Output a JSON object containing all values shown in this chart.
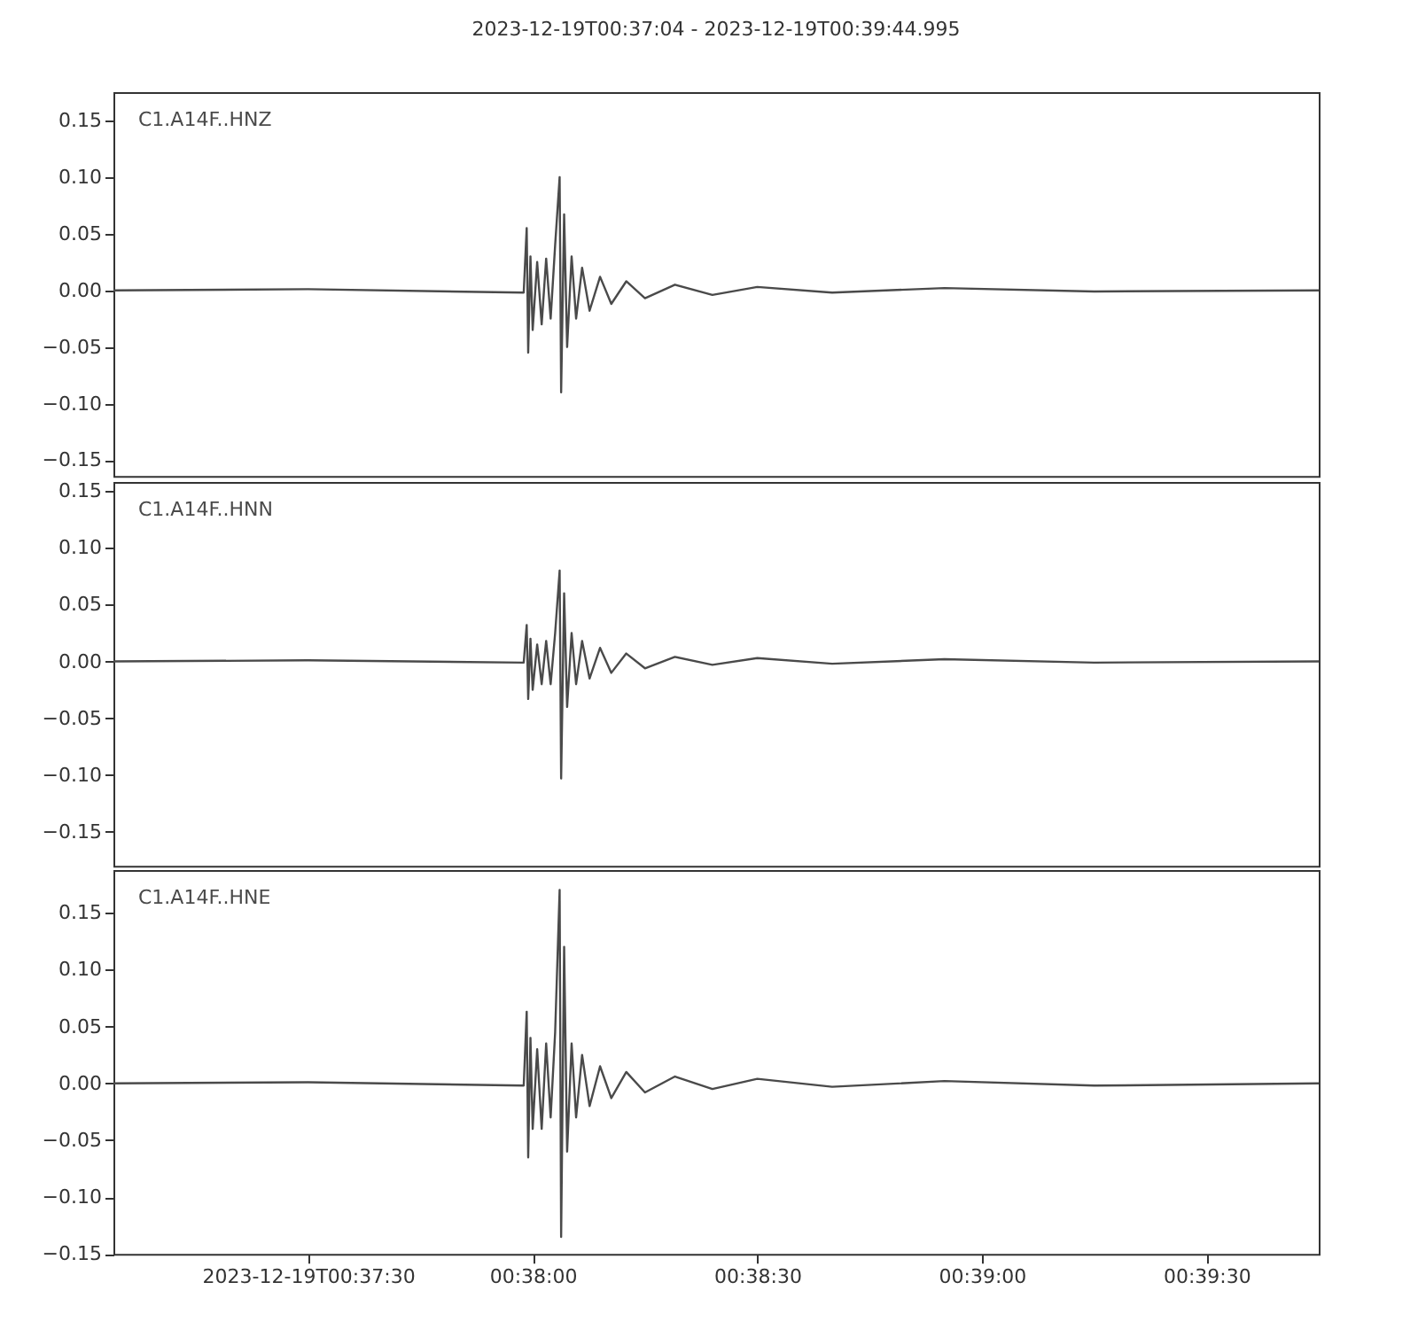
{
  "chart_data": [
    {
      "type": "line",
      "title": "2023-12-19T00:37:04  -  2023-12-19T00:39:44.995",
      "tick_labels": "y",
      "x": [
        "2023-12-19T00:37:04",
        "2023-12-19T00:37:30",
        "2023-12-19T00:37:58.8",
        "2023-12-19T00:37:59.2",
        "2023-12-19T00:37:59.4",
        "2023-12-19T00:37:59.7",
        "2023-12-19T00:38:00",
        "2023-12-19T00:38:00.6",
        "2023-12-19T00:38:01.2",
        "2023-12-19T00:38:01.8",
        "2023-12-19T00:38:02.4",
        "2023-12-19T00:38:03",
        "2023-12-19T00:38:03.6",
        "2023-12-19T00:38:03.8",
        "2023-12-19T00:38:04.2",
        "2023-12-19T00:38:04.6",
        "2023-12-19T00:38:05.2",
        "2023-12-19T00:38:05.8",
        "2023-12-19T00:38:06.6",
        "2023-12-19T00:38:07.6",
        "2023-12-19T00:38:09",
        "2023-12-19T00:38:10.5",
        "2023-12-19T00:38:12.5",
        "2023-12-19T00:38:15",
        "2023-12-19T00:38:19",
        "2023-12-19T00:38:24",
        "2023-12-19T00:38:30",
        "2023-12-19T00:38:40",
        "2023-12-19T00:38:55",
        "2023-12-19T00:39:15",
        "2023-12-19T00:39:44.995"
      ],
      "xlim": [
        "2023-12-19T00:37:04",
        "2023-12-19T00:39:44.995"
      ],
      "ylim": [
        -0.164,
        0.175
      ],
      "yticks": [
        {
          "value": -0.15,
          "label": "−0.15"
        },
        {
          "value": -0.1,
          "label": "−0.10"
        },
        {
          "value": -0.05,
          "label": "−0.05"
        },
        {
          "value": 0,
          "label": "0.00"
        },
        {
          "value": 0.05,
          "label": "0.05"
        },
        {
          "value": 0.1,
          "label": "0.10"
        },
        {
          "value": 0.15,
          "label": "0.15"
        }
      ],
      "series": [
        {
          "name": "C1.A14F..HNZ",
          "color": "#4a4a4a",
          "values": [
            0,
            0.001,
            -0.002,
            0.055,
            -0.055,
            0.03,
            -0.035,
            0.025,
            -0.03,
            0.028,
            -0.025,
            0.04,
            0.1,
            -0.09,
            0.067,
            -0.05,
            0.03,
            -0.025,
            0.02,
            -0.018,
            0.012,
            -0.012,
            0.008,
            -0.007,
            0.005,
            -0.004,
            0.003,
            -0.002,
            0.002,
            -0.001,
            0
          ]
        }
      ]
    },
    {
      "type": "line",
      "tick_labels": "y",
      "x": [
        "2023-12-19T00:37:04",
        "2023-12-19T00:37:30",
        "2023-12-19T00:37:58.8",
        "2023-12-19T00:37:59.2",
        "2023-12-19T00:37:59.4",
        "2023-12-19T00:37:59.7",
        "2023-12-19T00:38:00",
        "2023-12-19T00:38:00.6",
        "2023-12-19T00:38:01.2",
        "2023-12-19T00:38:01.8",
        "2023-12-19T00:38:02.4",
        "2023-12-19T00:38:03",
        "2023-12-19T00:38:03.6",
        "2023-12-19T00:38:03.8",
        "2023-12-19T00:38:04.2",
        "2023-12-19T00:38:04.6",
        "2023-12-19T00:38:05.2",
        "2023-12-19T00:38:05.8",
        "2023-12-19T00:38:06.6",
        "2023-12-19T00:38:07.6",
        "2023-12-19T00:38:09",
        "2023-12-19T00:38:10.5",
        "2023-12-19T00:38:12.5",
        "2023-12-19T00:38:15",
        "2023-12-19T00:38:19",
        "2023-12-19T00:38:24",
        "2023-12-19T00:38:30",
        "2023-12-19T00:38:40",
        "2023-12-19T00:38:55",
        "2023-12-19T00:39:15",
        "2023-12-19T00:39:44.995"
      ],
      "xlim": [
        "2023-12-19T00:37:04",
        "2023-12-19T00:39:44.995"
      ],
      "ylim": [
        -0.18,
        0.158
      ],
      "yticks": [
        {
          "value": -0.15,
          "label": "−0.15"
        },
        {
          "value": -0.1,
          "label": "−0.10"
        },
        {
          "value": -0.05,
          "label": "−0.05"
        },
        {
          "value": 0,
          "label": "0.00"
        },
        {
          "value": 0.05,
          "label": "0.05"
        },
        {
          "value": 0.1,
          "label": "0.10"
        },
        {
          "value": 0.15,
          "label": "0.15"
        }
      ],
      "series": [
        {
          "name": "C1.A14F..HNN",
          "color": "#4a4a4a",
          "values": [
            0,
            0.001,
            -0.001,
            0.032,
            -0.033,
            0.02,
            -0.025,
            0.015,
            -0.02,
            0.018,
            -0.02,
            0.025,
            0.08,
            -0.103,
            0.06,
            -0.04,
            0.025,
            -0.02,
            0.018,
            -0.015,
            0.012,
            -0.01,
            0.007,
            -0.006,
            0.004,
            -0.003,
            0.003,
            -0.002,
            0.002,
            -0.001,
            0
          ]
        }
      ]
    },
    {
      "type": "line",
      "x": [
        "2023-12-19T00:37:04",
        "2023-12-19T00:37:30",
        "2023-12-19T00:37:58.8",
        "2023-12-19T00:37:59.2",
        "2023-12-19T00:37:59.4",
        "2023-12-19T00:37:59.7",
        "2023-12-19T00:38:00",
        "2023-12-19T00:38:00.6",
        "2023-12-19T00:38:01.2",
        "2023-12-19T00:38:01.8",
        "2023-12-19T00:38:02.4",
        "2023-12-19T00:38:03",
        "2023-12-19T00:38:03.6",
        "2023-12-19T00:38:03.8",
        "2023-12-19T00:38:04.2",
        "2023-12-19T00:38:04.6",
        "2023-12-19T00:38:05.2",
        "2023-12-19T00:38:05.8",
        "2023-12-19T00:38:06.6",
        "2023-12-19T00:38:07.6",
        "2023-12-19T00:38:09",
        "2023-12-19T00:38:10.5",
        "2023-12-19T00:38:12.5",
        "2023-12-19T00:38:15",
        "2023-12-19T00:38:19",
        "2023-12-19T00:38:24",
        "2023-12-19T00:38:30",
        "2023-12-19T00:38:40",
        "2023-12-19T00:38:55",
        "2023-12-19T00:39:15",
        "2023-12-19T00:39:44.995"
      ],
      "xlim": [
        "2023-12-19T00:37:04",
        "2023-12-19T00:39:44.995"
      ],
      "xticks": [
        {
          "value": "2023-12-19T00:37:30",
          "label": "2023-12-19T00:37:30"
        },
        {
          "value": "2023-12-19T00:38:00",
          "label": "00:38:00"
        },
        {
          "value": "2023-12-19T00:38:30",
          "label": "00:38:30"
        },
        {
          "value": "2023-12-19T00:39:00",
          "label": "00:39:00"
        },
        {
          "value": "2023-12-19T00:39:30",
          "label": "00:39:30"
        }
      ],
      "ylim": [
        -0.15,
        0.1875
      ],
      "yticks": [
        {
          "value": -0.15,
          "label": "−0.15"
        },
        {
          "value": -0.1,
          "label": "−0.10"
        },
        {
          "value": -0.05,
          "label": "−0.05"
        },
        {
          "value": 0,
          "label": "0.00"
        },
        {
          "value": 0.05,
          "label": "0.05"
        },
        {
          "value": 0.1,
          "label": "0.10"
        },
        {
          "value": 0.15,
          "label": "0.15"
        }
      ],
      "series": [
        {
          "name": "C1.A14F..HNE",
          "color": "#4a4a4a",
          "values": [
            0,
            0.001,
            -0.002,
            0.063,
            -0.065,
            0.04,
            -0.04,
            0.03,
            -0.04,
            0.035,
            -0.03,
            0.045,
            0.17,
            -0.135,
            0.12,
            -0.06,
            0.035,
            -0.03,
            0.025,
            -0.02,
            0.015,
            -0.013,
            0.01,
            -0.008,
            0.006,
            -0.005,
            0.004,
            -0.003,
            0.002,
            -0.002,
            0
          ]
        }
      ]
    }
  ]
}
